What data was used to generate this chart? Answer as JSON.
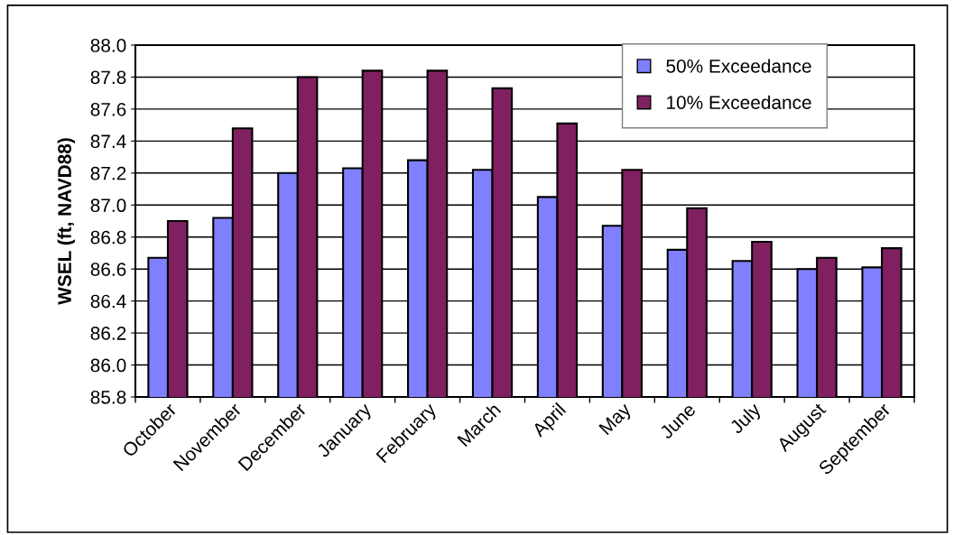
{
  "chart_data": {
    "type": "bar",
    "ylabel": "WSEL (ft, NAVD88)",
    "categories": [
      "October",
      "November",
      "December",
      "January",
      "February",
      "March",
      "April",
      "May",
      "June",
      "July",
      "August",
      "September"
    ],
    "series": [
      {
        "name": "50% Exceedance",
        "color": "#8080ff",
        "values": [
          86.67,
          86.92,
          87.2,
          87.23,
          87.28,
          87.22,
          87.05,
          86.87,
          86.72,
          86.65,
          86.6,
          86.61
        ]
      },
      {
        "name": "10% Exceedance",
        "color": "#802060",
        "values": [
          86.9,
          87.48,
          87.8,
          87.84,
          87.84,
          87.73,
          87.51,
          87.22,
          86.98,
          86.77,
          86.67,
          86.73
        ]
      }
    ],
    "ylim": [
      85.8,
      88.0
    ],
    "yticks": [
      {
        "value": 85.8,
        "label": "85.8"
      },
      {
        "value": 86.0,
        "label": "86.0"
      },
      {
        "value": 86.2,
        "label": "86.2"
      },
      {
        "value": 86.4,
        "label": "86.4"
      },
      {
        "value": 86.6,
        "label": "86.6"
      },
      {
        "value": 86.8,
        "label": "86.8"
      },
      {
        "value": 87.0,
        "label": "87.0"
      },
      {
        "value": 87.2,
        "label": "87.2"
      },
      {
        "value": 87.4,
        "label": "87.4"
      },
      {
        "value": 87.6,
        "label": "87.6"
      },
      {
        "value": 87.8,
        "label": "87.8"
      },
      {
        "value": 88.0,
        "label": "88.0"
      }
    ],
    "grid": "y",
    "legend": "top right"
  }
}
